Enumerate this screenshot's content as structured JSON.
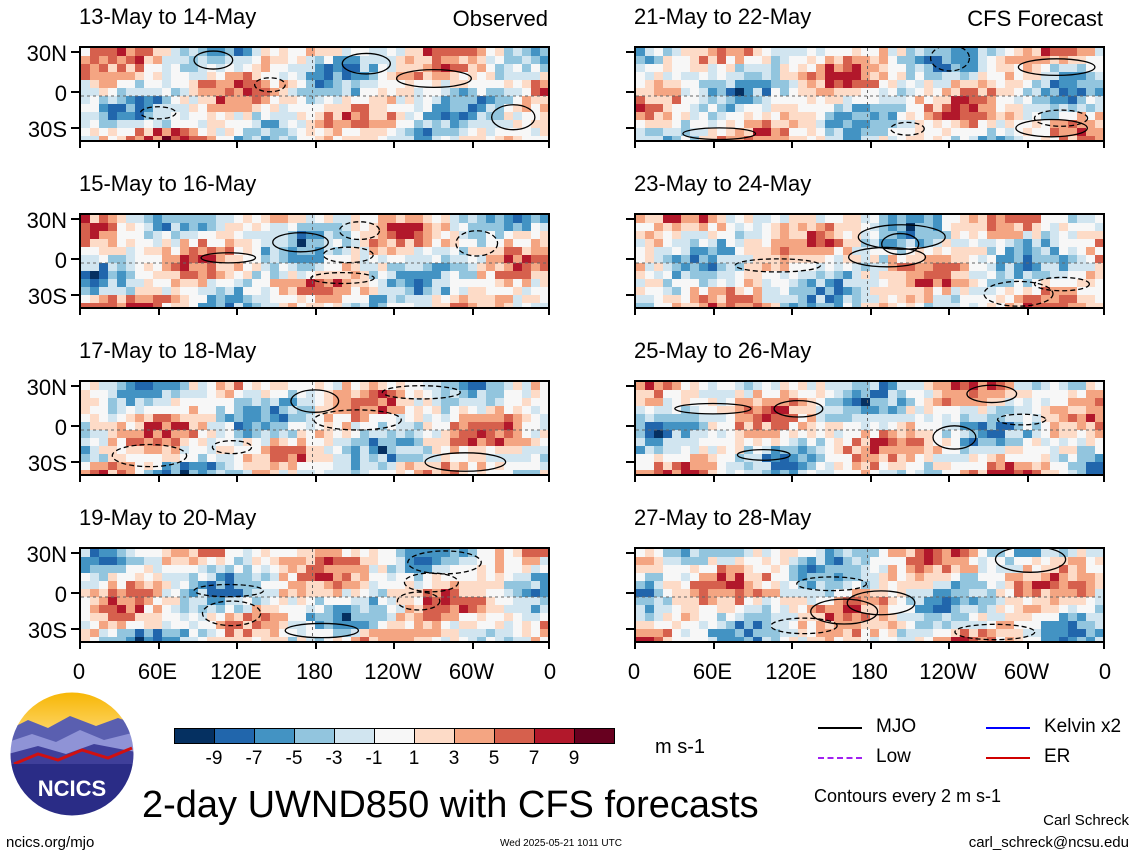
{
  "chart_data": {
    "type": "heatmap",
    "variable": "2-day UWND850 with CFS forecasts",
    "units": "m s-1",
    "contour_note": "Contours every 2 m s-1",
    "y_tick_labels": [
      "30N",
      "0",
      "30S"
    ],
    "x_tick_labels": [
      "0",
      "60E",
      "120E",
      "180",
      "120W",
      "60W",
      "0"
    ],
    "colorbar": {
      "tick_labels": [
        "-9",
        "-7",
        "-5",
        "-3",
        "-1",
        "1",
        "3",
        "5",
        "7",
        "9"
      ],
      "colors": [
        "#053061",
        "#2166ac",
        "#4393c3",
        "#92c5de",
        "#d1e5f0",
        "#f7f7f7",
        "#fddbc7",
        "#f4a582",
        "#d6604d",
        "#b2182b",
        "#67001f"
      ]
    },
    "legend": [
      {
        "label": "MJO",
        "color": "#000000",
        "dash": "solid"
      },
      {
        "label": "Kelvin x2",
        "color": "#0000ff",
        "dash": "solid"
      },
      {
        "label": "Low",
        "color": "#a020f0",
        "dash": "dashed"
      },
      {
        "label": "ER",
        "color": "#d00000",
        "dash": "solid"
      }
    ],
    "panels": [
      {
        "column": "left",
        "title": "13-May to 14-May",
        "label": "Observed"
      },
      {
        "column": "left",
        "title": "15-May to 16-May",
        "label": ""
      },
      {
        "column": "left",
        "title": "17-May to 18-May",
        "label": ""
      },
      {
        "column": "left",
        "title": "19-May to 20-May",
        "label": ""
      },
      {
        "column": "right",
        "title": "21-May to 22-May",
        "label": "CFS Forecast"
      },
      {
        "column": "right",
        "title": "23-May to 24-May",
        "label": ""
      },
      {
        "column": "right",
        "title": "25-May to 26-May",
        "label": ""
      },
      {
        "column": "right",
        "title": "27-May to 28-May",
        "label": ""
      }
    ]
  },
  "logo": {
    "text": "NCICS"
  },
  "title": "2-day UWND850 with CFS forecasts",
  "footer": {
    "url": "ncics.org/mjo",
    "timestamp": "Wed 2025-05-21 1011 UTC",
    "author": "Carl Schreck",
    "email": "carl_schreck@ncsu.edu"
  }
}
